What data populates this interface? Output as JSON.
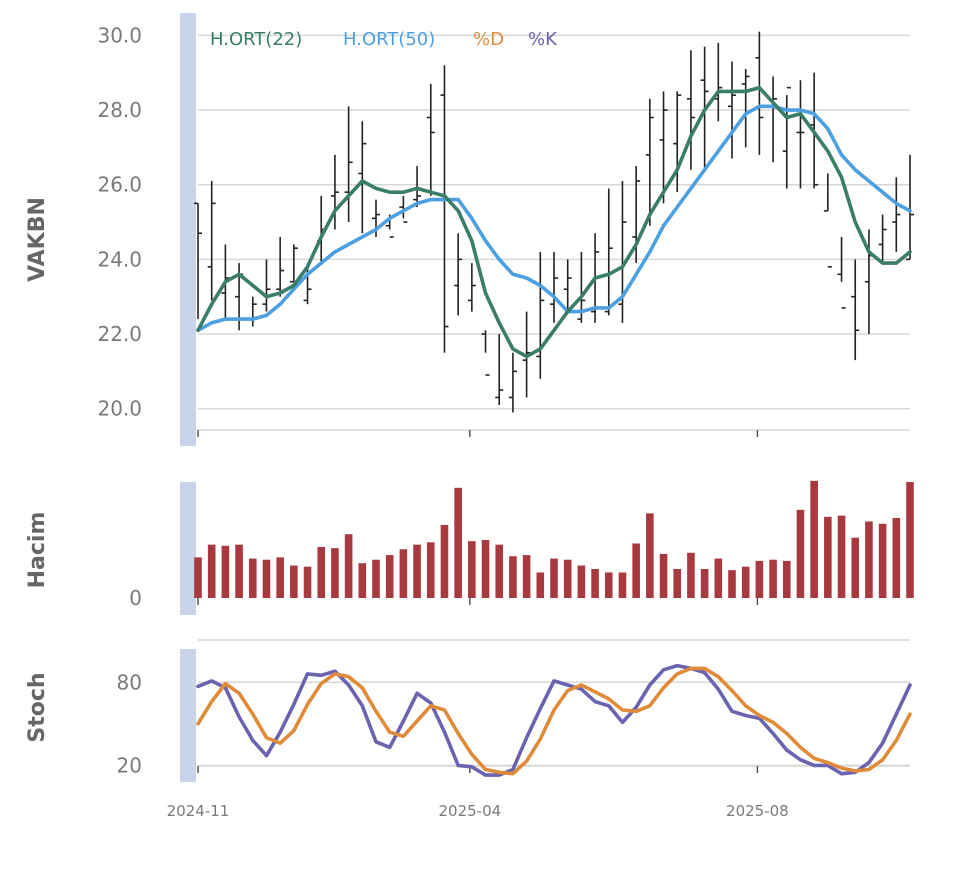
{
  "chart_data": {
    "type": "line",
    "x_tick_labels": [
      "2024-11",
      "2025-04",
      "2025-08"
    ],
    "colors": {
      "ma22": "#3a7d6a",
      "ma50": "#4c9fe0",
      "d": "#e08b3a",
      "k": "#6a63b0",
      "volume": "#a83a3f",
      "ohlc": "#222222",
      "band": "#c9d4ea",
      "grid": "#d7d7d7"
    },
    "panels": [
      {
        "name": "price",
        "ylabel": "VAKBN",
        "ylim": [
          19,
          30.6
        ],
        "yticks": [
          20.0,
          22.0,
          24.0,
          26.0,
          28.0,
          30.0
        ],
        "ytick_labels": [
          "20.0",
          "22.0",
          "24.0",
          "26.0",
          "28.0",
          "30.0"
        ],
        "legend": [
          "H.ORT(22)",
          "H.ORT(50)",
          "%D",
          "%K"
        ],
        "ohlc": {
          "high": [
            25.5,
            26.1,
            24.4,
            23.9,
            23.0,
            24.0,
            24.6,
            24.4,
            23.9,
            25.7,
            26.8,
            28.1,
            27.7,
            25.6,
            25.2,
            25.7,
            26.5,
            28.7,
            29.2,
            24.7,
            23.9,
            22.1,
            22.0,
            21.5,
            22.6,
            24.2,
            24.2,
            24.0,
            24.2,
            24.7,
            25.9,
            26.1,
            26.5,
            28.3,
            28.5,
            28.5,
            29.6,
            29.7,
            29.8,
            29.3,
            29.1,
            30.1,
            28.9,
            28.4,
            28.8,
            29.0,
            26.3,
            24.6,
            24.0,
            24.8,
            25.2,
            26.2,
            26.8
          ],
          "low": [
            22.4,
            22.9,
            22.4,
            22.1,
            22.2,
            22.6,
            23.0,
            23.4,
            22.8,
            23.9,
            24.8,
            25.0,
            24.7,
            24.6,
            24.8,
            25.1,
            25.4,
            25.7,
            21.5,
            22.5,
            22.6,
            21.5,
            20.1,
            19.9,
            20.3,
            20.8,
            22.3,
            22.6,
            22.3,
            22.3,
            22.5,
            22.3,
            23.9,
            24.9,
            25.5,
            25.8,
            26.4,
            26.4,
            27.7,
            26.7,
            27.0,
            26.8,
            26.6,
            25.9,
            25.9,
            25.9,
            25.3,
            23.4,
            21.3,
            22.0,
            23.9,
            24.2,
            24.0
          ],
          "open": [
            25.5,
            23.8,
            23.1,
            23.0,
            22.4,
            22.8,
            23.2,
            23.4,
            22.9,
            24.5,
            25.7,
            25.8,
            26.3,
            25.1,
            24.9,
            25.4,
            25.6,
            27.8,
            28.4,
            23.3,
            22.9,
            22.0,
            20.3,
            20.3,
            21.3,
            21.4,
            22.8,
            23.2,
            22.4,
            22.6,
            22.6,
            22.8,
            24.6,
            26.8,
            27.2,
            27.1,
            28.3,
            28.8,
            28.3,
            28.1,
            28.7,
            29.4,
            28.1,
            26.9,
            27.4,
            27.6,
            25.3,
            23.6,
            23.0,
            23.4,
            24.4,
            25.0,
            24.0
          ],
          "close": [
            24.7,
            25.5,
            23.5,
            23.6,
            22.8,
            23.2,
            23.7,
            24.3,
            23.2,
            24.8,
            25.8,
            26.6,
            27.1,
            25.2,
            24.6,
            25.0,
            25.7,
            27.4,
            22.2,
            24.0,
            23.3,
            20.9,
            20.5,
            21.0,
            21.5,
            22.9,
            23.5,
            23.5,
            22.9,
            24.2,
            24.3,
            25.0,
            26.1,
            27.8,
            28.0,
            28.4,
            27.8,
            28.5,
            28.6,
            28.4,
            28.9,
            27.8,
            28.3,
            28.6,
            27.4,
            26.0,
            23.8,
            22.7,
            22.1,
            24.1,
            24.8,
            25.2,
            25.2
          ]
        },
        "series": [
          {
            "name": "H.ORT(22)",
            "values": [
              22.1,
              22.8,
              23.4,
              23.6,
              23.3,
              23.0,
              23.1,
              23.3,
              23.8,
              24.6,
              25.3,
              25.7,
              26.1,
              25.9,
              25.8,
              25.8,
              25.9,
              25.8,
              25.7,
              25.3,
              24.5,
              23.1,
              22.3,
              21.6,
              21.4,
              21.6,
              22.1,
              22.6,
              23.0,
              23.5,
              23.6,
              23.8,
              24.4,
              25.2,
              25.8,
              26.4,
              27.3,
              28.0,
              28.5,
              28.5,
              28.5,
              28.6,
              28.2,
              27.8,
              27.9,
              27.4,
              26.9,
              26.2,
              25.0,
              24.2,
              23.9,
              23.9,
              24.2
            ]
          },
          {
            "name": "H.ORT(50)",
            "values": [
              22.1,
              22.3,
              22.4,
              22.4,
              22.4,
              22.5,
              22.8,
              23.2,
              23.6,
              23.9,
              24.2,
              24.4,
              24.6,
              24.8,
              25.1,
              25.3,
              25.5,
              25.6,
              25.6,
              25.6,
              25.1,
              24.5,
              24.0,
              23.6,
              23.5,
              23.3,
              23.0,
              22.6,
              22.6,
              22.7,
              22.7,
              23.0,
              23.6,
              24.2,
              24.9,
              25.4,
              25.9,
              26.4,
              26.9,
              27.4,
              27.9,
              28.1,
              28.1,
              28.0,
              28.0,
              27.9,
              27.5,
              26.8,
              26.4,
              26.1,
              25.8,
              25.5,
              25.3
            ]
          }
        ]
      },
      {
        "name": "volume",
        "ylabel": "Hacim",
        "ylim": [
          0,
          100
        ],
        "yticks": [
          0
        ],
        "ytick_labels": [
          "0"
        ],
        "values": [
          35,
          46,
          45,
          46,
          34,
          33,
          35,
          28,
          27,
          44,
          43,
          55,
          30,
          33,
          37,
          42,
          46,
          48,
          63,
          95,
          49,
          50,
          46,
          36,
          37,
          22,
          34,
          33,
          28,
          25,
          22,
          22,
          47,
          73,
          38,
          25,
          39,
          25,
          34,
          24,
          27,
          32,
          33,
          32,
          76,
          101,
          70,
          71,
          52,
          66,
          64,
          69,
          100
        ]
      },
      {
        "name": "stoch",
        "ylabel": "Stoch",
        "ylim": [
          8,
          104
        ],
        "yticks": [
          20,
          80
        ],
        "ytick_labels": [
          "20",
          "80"
        ],
        "series": [
          {
            "name": "%K",
            "values": [
              77,
              81,
              76,
              55,
              38,
              27,
              44,
              64,
              86,
              85,
              88,
              78,
              63,
              37,
              33,
              52,
              72,
              65,
              44,
              20,
              19,
              13,
              13,
              17,
              40,
              61,
              81,
              78,
              75,
              66,
              63,
              51,
              62,
              78,
              89,
              92,
              90,
              87,
              75,
              59,
              56,
              54,
              43,
              31,
              24,
              20,
              20,
              14,
              15,
              22,
              36,
              57,
              78
            ]
          },
          {
            "name": "%D",
            "values": [
              50,
              66,
              79,
              72,
              57,
              40,
              36,
              45,
              64,
              79,
              86,
              84,
              76,
              59,
              44,
              41,
              52,
              63,
              60,
              43,
              28,
              17,
              15,
              14,
              23,
              39,
              60,
              74,
              78,
              73,
              68,
              60,
              59,
              63,
              76,
              86,
              90,
              90,
              84,
              74,
              63,
              56,
              51,
              43,
              33,
              25,
              22,
              18,
              16,
              17,
              24,
              38,
              57
            ]
          }
        ]
      }
    ]
  }
}
